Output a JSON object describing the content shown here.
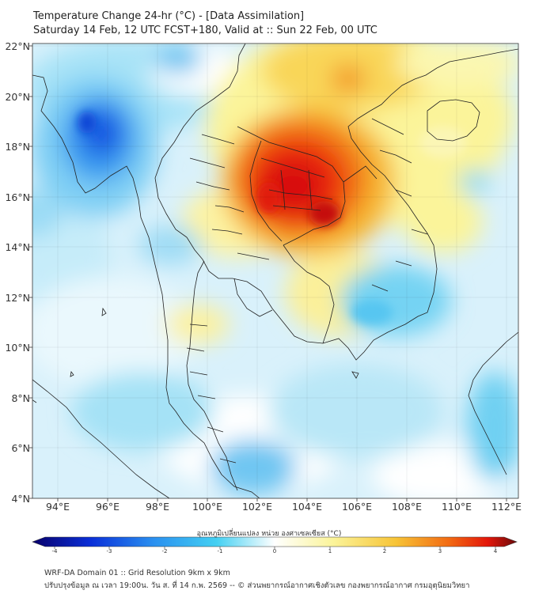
{
  "header": {
    "title_line1": "Temperature Change 24-hr (°C) - [Data Assimilation]",
    "title_line2": "Saturday 14 Feb, 12 UTC FCST+180, Valid at :: Sun 22 Feb, 00 UTC"
  },
  "map": {
    "lat_labels": [
      "22°N",
      "20°N",
      "18°N",
      "16°N",
      "14°N",
      "12°N",
      "10°N",
      "8°N",
      "6°N",
      "4°N"
    ],
    "lon_labels": [
      "94°E",
      "96°E",
      "98°E",
      "100°E",
      "102°E",
      "104°E",
      "106°E",
      "108°E",
      "110°E",
      "112°E"
    ],
    "extent": {
      "lon_min": 93,
      "lon_max": 112.5,
      "lat_min": 4,
      "lat_max": 22.3
    },
    "anomalies": [
      {
        "name": "warm-center-northeast-thailand",
        "lon": 103.0,
        "lat": 16.4,
        "value": 3.2
      },
      {
        "name": "warm-laos",
        "lon": 104.5,
        "lat": 18.0,
        "value": 1.8
      },
      {
        "name": "warm-north-vietnam",
        "lon": 106.0,
        "lat": 20.5,
        "value": 1.5
      },
      {
        "name": "cold-center-myanmar",
        "lon": 95.8,
        "lat": 18.3,
        "value": -2.3
      },
      {
        "name": "cold-central-vietnam-coast",
        "lon": 109.0,
        "lat": 12.5,
        "value": -1.2
      },
      {
        "name": "cold-gulf-of-thailand",
        "lon": 101.5,
        "lat": 5.5,
        "value": -1.3
      }
    ]
  },
  "colorbar": {
    "title": "อุณหภูมิเปลี่ยนแปลง หน่วย องศาเซลเซียส (°C)",
    "ticks": [
      "-4",
      "-3",
      "-2",
      "-1",
      "0",
      "1",
      "2",
      "3",
      "4"
    ],
    "min": -4,
    "max": 4,
    "colors": [
      "#08006b",
      "#0a2fd8",
      "#2a90f0",
      "#44d0f2",
      "#ffffff",
      "#fbf49a",
      "#f7c437",
      "#f26a12",
      "#e3160a",
      "#6b0a0a"
    ]
  },
  "footer": {
    "line1": "WRF-DA Domain 01 :: Grid Resolution 9km x 9km",
    "line2": "ปรับปรุงข้อมูล ณ เวลา 19:00น. วัน ส. ที่ 14 ก.พ. 2569 -- © ส่วนพยากรณ์อากาศเชิงตัวเลข กองพยากรณ์อากาศ กรมอุตุนิยมวิทยา"
  }
}
